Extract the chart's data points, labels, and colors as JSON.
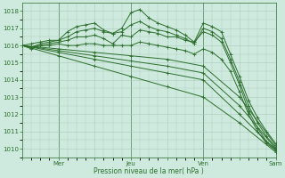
{
  "background_color": "#ceeade",
  "grid_color": "#aacaba",
  "line_color": "#2d6e2d",
  "xlabel": "Pression niveau de la mer( hPa )",
  "xlabel_color": "#2d6e2d",
  "tick_color": "#2d6e2d",
  "ylim": [
    1009.5,
    1018.5
  ],
  "yticks": [
    1010,
    1011,
    1012,
    1013,
    1014,
    1015,
    1016,
    1017,
    1018
  ],
  "xtick_labels": [
    "",
    "Mer",
    "",
    "Jeu",
    "",
    "Ven",
    "",
    "Sam"
  ],
  "xtick_positions": [
    0,
    24,
    48,
    72,
    96,
    120,
    144,
    168
  ],
  "vlines": [
    24,
    72,
    120,
    168
  ],
  "total_hours": 168,
  "series": [
    {
      "x": [
        0,
        6,
        12,
        18,
        24,
        30,
        36,
        42,
        48,
        54,
        60,
        66,
        72,
        78,
        84,
        90,
        96,
        102,
        108,
        114,
        120,
        126,
        132,
        138,
        144,
        150,
        156,
        162,
        168
      ],
      "y": [
        1016.0,
        1016.1,
        1016.2,
        1016.3,
        1016.3,
        1016.8,
        1017.1,
        1017.2,
        1017.3,
        1016.9,
        1016.7,
        1017.0,
        1017.9,
        1018.1,
        1017.6,
        1017.3,
        1017.1,
        1016.9,
        1016.6,
        1016.2,
        1017.3,
        1017.1,
        1016.8,
        1015.5,
        1014.2,
        1012.8,
        1011.8,
        1011.0,
        1010.3
      ]
    },
    {
      "x": [
        0,
        6,
        12,
        18,
        24,
        30,
        36,
        42,
        48,
        54,
        60,
        66,
        72,
        78,
        84,
        90,
        96,
        102,
        108,
        114,
        120,
        126,
        132,
        138,
        144,
        150,
        156,
        162,
        168
      ],
      "y": [
        1016.0,
        1015.9,
        1016.1,
        1016.2,
        1016.3,
        1016.5,
        1016.8,
        1016.9,
        1017.0,
        1016.8,
        1016.7,
        1016.8,
        1017.2,
        1017.4,
        1017.1,
        1016.9,
        1016.8,
        1016.6,
        1016.4,
        1016.1,
        1017.0,
        1016.8,
        1016.4,
        1015.2,
        1013.9,
        1012.5,
        1011.5,
        1010.7,
        1010.1
      ]
    },
    {
      "x": [
        0,
        6,
        12,
        18,
        24,
        30,
        36,
        42,
        48,
        54,
        60,
        66,
        72,
        78,
        84,
        90,
        96,
        102,
        108,
        114,
        120,
        126,
        132,
        138,
        144,
        150,
        156,
        162,
        168
      ],
      "y": [
        1016.0,
        1015.9,
        1016.0,
        1016.1,
        1016.2,
        1016.3,
        1016.5,
        1016.5,
        1016.6,
        1016.4,
        1016.1,
        1016.6,
        1016.5,
        1016.9,
        1016.8,
        1016.7,
        1016.5,
        1016.5,
        1016.3,
        1016.2,
        1016.8,
        1016.6,
        1016.2,
        1015.0,
        1013.7,
        1012.2,
        1011.2,
        1010.4,
        1010.0
      ]
    },
    {
      "x": [
        0,
        6,
        12,
        18,
        24,
        30,
        36,
        42,
        48,
        54,
        60,
        66,
        72,
        78,
        84,
        90,
        96,
        102,
        108,
        114,
        120,
        126,
        132,
        138,
        144,
        150,
        156,
        162,
        168
      ],
      "y": [
        1016.0,
        1015.8,
        1016.0,
        1016.0,
        1016.1,
        1016.0,
        1016.0,
        1016.1,
        1016.1,
        1016.0,
        1016.0,
        1016.0,
        1016.0,
        1016.2,
        1016.1,
        1016.0,
        1015.9,
        1015.8,
        1015.7,
        1015.5,
        1015.8,
        1015.6,
        1015.2,
        1014.5,
        1013.3,
        1012.0,
        1011.0,
        1010.3,
        1009.9
      ]
    },
    {
      "x": [
        0,
        24,
        48,
        72,
        96,
        120,
        144,
        168
      ],
      "y": [
        1016.0,
        1015.8,
        1015.6,
        1015.4,
        1015.2,
        1014.8,
        1013.0,
        1010.2
      ]
    },
    {
      "x": [
        0,
        24,
        48,
        72,
        96,
        120,
        144,
        168
      ],
      "y": [
        1016.0,
        1015.7,
        1015.4,
        1015.1,
        1014.8,
        1014.4,
        1012.5,
        1010.0
      ]
    },
    {
      "x": [
        0,
        24,
        48,
        72,
        96,
        120,
        144,
        168
      ],
      "y": [
        1016.0,
        1015.6,
        1015.2,
        1014.8,
        1014.4,
        1014.0,
        1012.0,
        1009.9
      ]
    },
    {
      "x": [
        0,
        24,
        48,
        72,
        96,
        120,
        144,
        168
      ],
      "y": [
        1016.0,
        1015.4,
        1014.8,
        1014.2,
        1013.6,
        1013.0,
        1011.5,
        1009.8
      ]
    }
  ]
}
